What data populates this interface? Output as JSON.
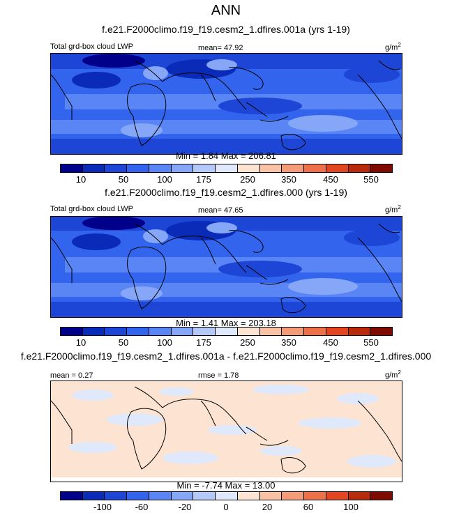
{
  "title": "ANN",
  "var_name": "Total grd-box cloud LWP",
  "units_base": "g/m",
  "units_exp": "2",
  "colors": {
    "abs_scale": [
      "#00008b",
      "#0a2bb8",
      "#1e46d6",
      "#3264ee",
      "#5a86f5",
      "#86a6f7",
      "#b4c9f8",
      "#dfe9fb",
      "#fde4d2",
      "#f9c2a4",
      "#f49c78",
      "#ee7048",
      "#e14620",
      "#b72a0c",
      "#7f0a00"
    ],
    "diff_scale": [
      "#00008b",
      "#0a2bb8",
      "#1e46d6",
      "#3264ee",
      "#5a86f5",
      "#86a6f7",
      "#b4c9f8",
      "#dfe9fb",
      "#fde4d2",
      "#f9c2a4",
      "#f49c78",
      "#ee7048",
      "#e14620",
      "#b72a0c",
      "#7f0a00"
    ],
    "land": "#000000"
  },
  "chart_data": [
    {
      "type": "heatmap",
      "title": "f.e21.F2000climo.f19_f19.cesm2_1.dfires.001a (yrs 1-19)",
      "left_label": "Total grd-box cloud LWP",
      "stat": "mean=  47.92",
      "units": "g/m2",
      "minmax": "Min =   1.84 Max = 206.81",
      "mean": 47.92,
      "min": 1.84,
      "max": 206.81,
      "colorbar_ticks": [
        "10",
        "50",
        "100",
        "175",
        "250",
        "350",
        "450",
        "550"
      ]
    },
    {
      "type": "heatmap",
      "title": "f.e21.F2000climo.f19_f19.cesm2_1.dfires.000 (yrs 1-19)",
      "left_label": "Total grd-box cloud LWP",
      "stat": "mean=  47.65",
      "units": "g/m2",
      "minmax": "Min =   1.41 Max = 203.18",
      "mean": 47.65,
      "min": 1.41,
      "max": 203.18,
      "colorbar_ticks": [
        "10",
        "50",
        "100",
        "175",
        "250",
        "350",
        "450",
        "550"
      ]
    },
    {
      "type": "heatmap",
      "title": "f.e21.F2000climo.f19_f19.cesm2_1.dfires.001a - f.e21.F2000climo.f19_f19.cesm2_1.dfires.000",
      "left_label": "mean =   0.27",
      "stat": "rmse =   1.78",
      "units": "g/m2",
      "minmax": "Min =  -7.74 Max =  13.00",
      "mean": 0.27,
      "rmse": 1.78,
      "min": -7.74,
      "max": 13.0,
      "colorbar_ticks": [
        "-100",
        "-60",
        "-20",
        "0",
        "20",
        "60",
        "100"
      ]
    }
  ]
}
